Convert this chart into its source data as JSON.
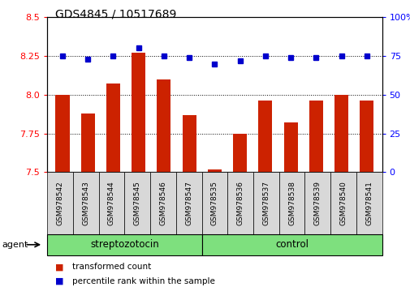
{
  "title": "GDS4845 / 10517689",
  "samples": [
    "GSM978542",
    "GSM978543",
    "GSM978544",
    "GSM978545",
    "GSM978546",
    "GSM978547",
    "GSM978535",
    "GSM978536",
    "GSM978537",
    "GSM978538",
    "GSM978539",
    "GSM978540",
    "GSM978541"
  ],
  "red_values": [
    8.0,
    7.88,
    8.07,
    8.27,
    8.1,
    7.87,
    7.52,
    7.75,
    7.96,
    7.82,
    7.96,
    8.0,
    7.96
  ],
  "blue_values": [
    75,
    73,
    75,
    80,
    75,
    74,
    70,
    72,
    75,
    74,
    74,
    75,
    75
  ],
  "ylim_left": [
    7.5,
    8.5
  ],
  "ylim_right": [
    0,
    100
  ],
  "yticks_left": [
    7.5,
    7.75,
    8.0,
    8.25,
    8.5
  ],
  "yticks_right": [
    0,
    25,
    50,
    75,
    100
  ],
  "group_labels": [
    "streptozotocin",
    "control"
  ],
  "green_color": "#7EE07E",
  "group1_count": 6,
  "group2_count": 7,
  "bar_color": "#CC2200",
  "dot_color": "#0000CC",
  "agent_label": "agent",
  "legend_items": [
    "transformed count",
    "percentile rank within the sample"
  ],
  "legend_colors": [
    "#CC2200",
    "#0000CC"
  ],
  "bar_width": 0.55,
  "bg_gray": "#D8D8D8"
}
